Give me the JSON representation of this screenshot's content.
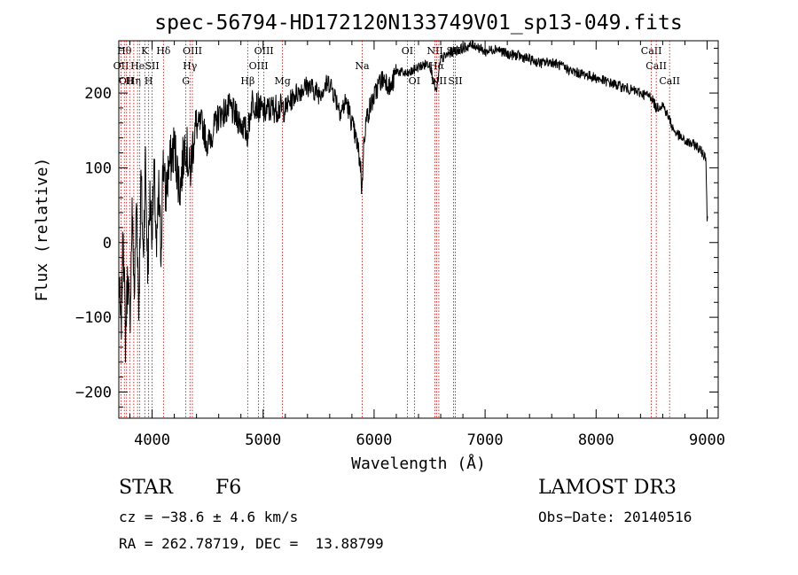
{
  "chart_data": {
    "type": "line",
    "title": "spec-56794-HD172120N133749V01_sp13-049.fits",
    "xlabel": "Wavelength (Å)",
    "ylabel": "Flux (relative)",
    "xlim": [
      3700,
      9100
    ],
    "ylim": [
      -235,
      270
    ],
    "xticks": [
      4000,
      5000,
      6000,
      7000,
      8000,
      9000
    ],
    "xtick_labels": [
      "4000",
      "5000",
      "6000",
      "7000",
      "8000",
      "9000"
    ],
    "yticks": [
      -200,
      -100,
      0,
      100,
      200
    ],
    "ytick_labels": [
      "−200",
      "−100",
      "0",
      "100",
      "200"
    ],
    "series": [
      {
        "name": "flux",
        "x": [
          3700,
          3720,
          3740,
          3760,
          3780,
          3800,
          3820,
          3840,
          3860,
          3880,
          3900,
          3920,
          3940,
          3960,
          3980,
          4000,
          4020,
          4040,
          4060,
          4080,
          4100,
          4120,
          4150,
          4200,
          4250,
          4300,
          4340,
          4380,
          4450,
          4500,
          4600,
          4700,
          4800,
          4860,
          4900,
          5000,
          5100,
          5200,
          5300,
          5400,
          5500,
          5600,
          5700,
          5750,
          5800,
          5850,
          5880,
          5890,
          5900,
          5910,
          5930,
          5960,
          6000,
          6050,
          6100,
          6150,
          6200,
          6300,
          6400,
          6500,
          6560,
          6600,
          6700,
          6800,
          6900,
          7000,
          7100,
          7200,
          7300,
          7400,
          7500,
          7600,
          7700,
          7800,
          7900,
          8000,
          8100,
          8200,
          8300,
          8400,
          8500,
          8540,
          8600,
          8660,
          8700,
          8800,
          8900,
          8960,
          8990,
          9000,
          9005
        ],
        "y": [
          -50,
          -120,
          20,
          -130,
          -40,
          -110,
          40,
          -70,
          60,
          -90,
          90,
          -20,
          110,
          -40,
          60,
          20,
          95,
          -20,
          70,
          -15,
          120,
          60,
          100,
          130,
          70,
          140,
          90,
          150,
          160,
          130,
          170,
          180,
          160,
          145,
          190,
          175,
          180,
          180,
          200,
          210,
          200,
          215,
          175,
          190,
          160,
          130,
          100,
          65,
          110,
          140,
          165,
          180,
          195,
          215,
          220,
          205,
          230,
          225,
          235,
          240,
          200,
          245,
          255,
          260,
          265,
          255,
          260,
          252,
          250,
          245,
          240,
          242,
          235,
          228,
          225,
          220,
          215,
          210,
          205,
          200,
          195,
          180,
          185,
          165,
          150,
          135,
          130,
          120,
          115,
          30,
          35
        ]
      }
    ],
    "lines": [
      {
        "wave": 3720,
        "label": "OII",
        "row": 2
      },
      {
        "wave": 3750,
        "label": "Hθ",
        "row": 1
      },
      {
        "wave": 3770,
        "label": "OII",
        "row": 3
      },
      {
        "wave": 3798,
        "label": "H",
        "row": 3
      },
      {
        "wave": 3835,
        "label": "Hη",
        "row": 3
      },
      {
        "wave": 3869,
        "label": "He",
        "row": 2
      },
      {
        "wave": 3889,
        "label": "",
        "row": 0
      },
      {
        "wave": 3934,
        "label": "K",
        "row": 1
      },
      {
        "wave": 3969,
        "label": "H",
        "row": 3
      },
      {
        "wave": 4000,
        "label": "SII",
        "row": 2
      },
      {
        "wave": 4102,
        "label": "Hδ",
        "row": 1
      },
      {
        "wave": 4304,
        "label": "G",
        "row": 3
      },
      {
        "wave": 4341,
        "label": "Hγ",
        "row": 2
      },
      {
        "wave": 4363,
        "label": "OIII",
        "row": 1
      },
      {
        "wave": 4861,
        "label": "Hβ",
        "row": 3
      },
      {
        "wave": 4959,
        "label": "OIII",
        "row": 2
      },
      {
        "wave": 5007,
        "label": "OIII",
        "row": 1
      },
      {
        "wave": 5175,
        "label": "Mg",
        "row": 3
      },
      {
        "wave": 5893,
        "label": "Na",
        "row": 2
      },
      {
        "wave": 6300,
        "label": "OI",
        "row": 1
      },
      {
        "wave": 6363,
        "label": "OI",
        "row": 3
      },
      {
        "wave": 6548,
        "label": "NII",
        "row": 1
      },
      {
        "wave": 6563,
        "label": "Hα",
        "row": 2
      },
      {
        "wave": 6583,
        "label": "NII",
        "row": 3
      },
      {
        "wave": 6716,
        "label": "SII",
        "row": 1
      },
      {
        "wave": 6731,
        "label": "SII",
        "row": 3
      },
      {
        "wave": 8498,
        "label": "CaII",
        "row": 1
      },
      {
        "wave": 8542,
        "label": "CaII",
        "row": 2
      },
      {
        "wave": 8662,
        "label": "CaII",
        "row": 3
      }
    ]
  },
  "info": {
    "object_class": "STAR",
    "subclass": "F6",
    "survey": "LAMOST DR3",
    "cz": "cz = −38.6 ± 4.6 km/s",
    "obs_date": "Obs−Date: 20140516",
    "coords": "RA = 262.78719, DEC =  13.88799"
  },
  "colors": {
    "spectrum": "#000000",
    "line_marker": "#c00000"
  }
}
